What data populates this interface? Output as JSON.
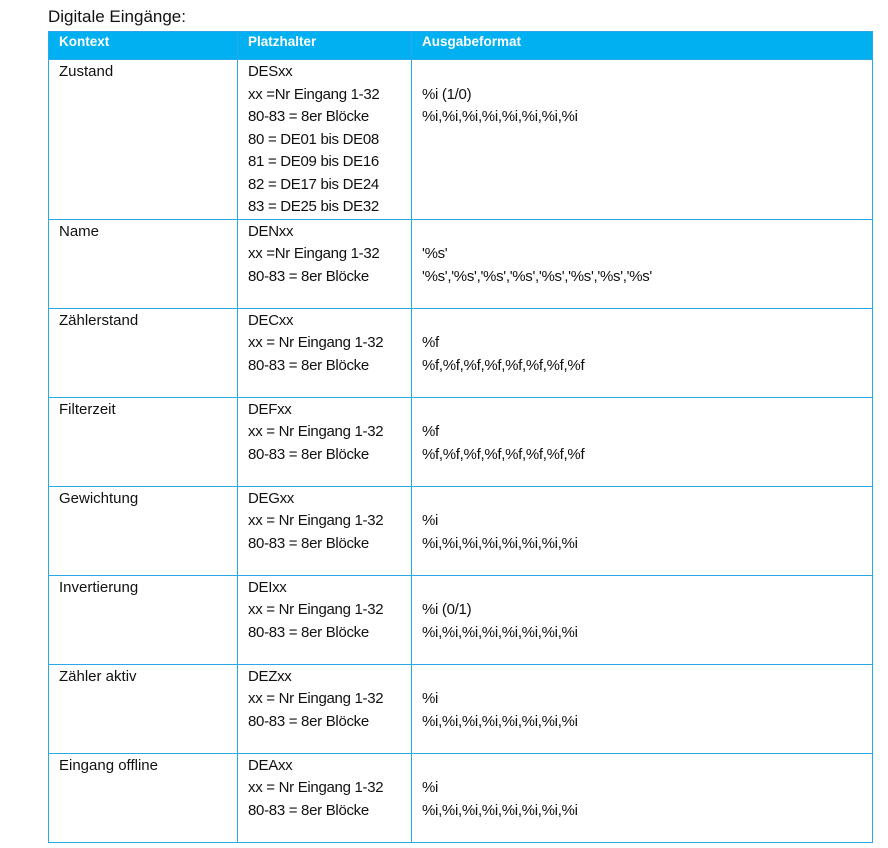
{
  "title": "Digitale Eingänge:",
  "headers": [
    "Kontext",
    "Platzhalter",
    "Ausgabeformat"
  ],
  "rows": [
    {
      "kontext": "Zustand",
      "platzhalter": [
        "DESxx",
        "xx =Nr Eingang 1-32",
        "80-83 = 8er Blöcke",
        "80 = DE01 bis DE08",
        "81 = DE09 bis DE16",
        "82 = DE17 bis DE24",
        "83 = DE25 bis DE32"
      ],
      "format": [
        "%i (1/0)",
        "%i,%i,%i,%i,%i,%i,%i,%i"
      ]
    },
    {
      "kontext": "Name",
      "platzhalter": [
        "DENxx",
        "xx =Nr Eingang 1-32",
        "80-83 = 8er Blöcke"
      ],
      "format": [
        "'%s'",
        "'%s','%s','%s','%s','%s','%s','%s','%s'"
      ]
    },
    {
      "kontext": "Zählerstand",
      "platzhalter": [
        "DECxx",
        "xx = Nr Eingang 1-32",
        "80-83 = 8er Blöcke"
      ],
      "format": [
        "%f",
        "%f,%f,%f,%f,%f,%f,%f,%f"
      ]
    },
    {
      "kontext": "Filterzeit",
      "platzhalter": [
        "DEFxx",
        "xx = Nr Eingang 1-32",
        "80-83 = 8er Blöcke"
      ],
      "format": [
        "%f",
        "%f,%f,%f,%f,%f,%f,%f,%f"
      ]
    },
    {
      "kontext": "Gewichtung",
      "platzhalter": [
        "DEGxx",
        "xx = Nr Eingang 1-32",
        "80-83 = 8er Blöcke"
      ],
      "format": [
        "%i",
        "%i,%i,%i,%i,%i,%i,%i,%i"
      ]
    },
    {
      "kontext": "Invertierung",
      "platzhalter": [
        "DEIxx",
        "xx = Nr Eingang 1-32",
        "80-83 = 8er Blöcke"
      ],
      "format": [
        "%i (0/1)",
        "%i,%i,%i,%i,%i,%i,%i,%i"
      ]
    },
    {
      "kontext": "Zähler aktiv",
      "platzhalter": [
        "DEZxx",
        "xx = Nr Eingang 1-32",
        "80-83 = 8er Blöcke"
      ],
      "format": [
        "%i",
        "%i,%i,%i,%i,%i,%i,%i,%i"
      ]
    },
    {
      "kontext": "Eingang offline",
      "platzhalter": [
        "DEAxx",
        "xx = Nr Eingang 1-32",
        "80-83 = 8er Blöcke"
      ],
      "format": [
        "%i",
        "%i,%i,%i,%i,%i,%i,%i,%i"
      ]
    }
  ],
  "colors": {
    "header": "#00b0f0",
    "border": "#2aa8e6"
  }
}
